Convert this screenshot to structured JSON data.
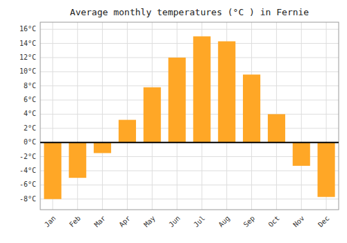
{
  "chart_data": {
    "type": "bar",
    "title": "Average monthly temperatures (°C ) in Fernie",
    "categories": [
      "Jan",
      "Feb",
      "Mar",
      "Apr",
      "May",
      "Jun",
      "Jul",
      "Aug",
      "Sep",
      "Oct",
      "Nov",
      "Dec"
    ],
    "values": [
      -8,
      -5,
      -1.5,
      3.2,
      7.8,
      12,
      15,
      14.3,
      9.6,
      4.0,
      -3.3,
      -7.7
    ],
    "color": "#FFA726",
    "ylim": [
      -9.5,
      17
    ],
    "yticks": [
      {
        "value": -8,
        "label": "-8°C"
      },
      {
        "value": -6,
        "label": "-6°C"
      },
      {
        "value": -4,
        "label": "-4°C"
      },
      {
        "value": -2,
        "label": "-2°C"
      },
      {
        "value": 0,
        "label": "0°C"
      },
      {
        "value": 2,
        "label": "2°C"
      },
      {
        "value": 4,
        "label": "4°C"
      },
      {
        "value": 6,
        "label": "6°C"
      },
      {
        "value": 8,
        "label": "8°C"
      },
      {
        "value": 10,
        "label": "10°C"
      },
      {
        "value": 12,
        "label": "12°C"
      },
      {
        "value": 14,
        "label": "14°C"
      },
      {
        "value": 16,
        "label": "16°C"
      }
    ],
    "grid": true
  }
}
